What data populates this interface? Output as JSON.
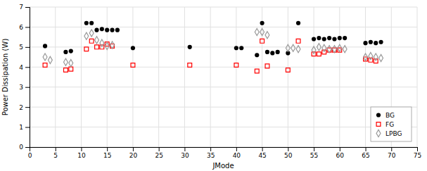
{
  "chart_data": {
    "type": "scatter",
    "xlabel": "JMode",
    "ylabel": "Power Dissipation (W)",
    "xlim": [
      0,
      75
    ],
    "ylim": [
      0,
      7
    ],
    "xticks": [
      0,
      5,
      10,
      15,
      20,
      25,
      30,
      35,
      40,
      45,
      50,
      55,
      60,
      65,
      70,
      75
    ],
    "yticks": [
      0,
      1,
      2,
      3,
      4,
      5,
      6,
      7
    ],
    "grid": true,
    "legend": "lower right",
    "series": [
      {
        "name": "BG",
        "color": "#000000",
        "marker": "circle",
        "x": [
          3,
          7,
          8,
          11,
          12,
          13,
          14,
          15,
          16,
          17,
          20,
          31,
          40,
          41,
          44,
          45,
          46,
          47,
          48,
          50,
          52,
          55,
          56,
          57,
          58,
          59,
          60,
          61,
          65,
          66,
          67,
          68
        ],
        "values": [
          5.05,
          4.75,
          4.8,
          6.2,
          6.2,
          5.85,
          5.9,
          5.85,
          5.85,
          5.85,
          4.95,
          5.0,
          4.95,
          4.95,
          4.6,
          6.2,
          4.75,
          4.7,
          4.75,
          4.7,
          6.2,
          5.4,
          5.45,
          5.4,
          5.45,
          5.4,
          5.45,
          5.45,
          5.2,
          5.25,
          5.2,
          5.25
        ]
      },
      {
        "name": "FG",
        "color": "#ff0000",
        "marker": "square-open",
        "x": [
          3,
          7,
          8,
          11,
          12,
          13,
          14,
          15,
          16,
          20,
          31,
          40,
          44,
          45,
          46,
          50,
          52,
          55,
          56,
          57,
          58,
          59,
          60,
          65,
          66,
          67
        ],
        "values": [
          4.1,
          3.85,
          3.9,
          4.9,
          5.3,
          5.0,
          5.0,
          5.15,
          5.05,
          4.1,
          4.1,
          4.1,
          3.8,
          5.3,
          4.05,
          3.85,
          5.3,
          4.65,
          4.65,
          4.75,
          4.85,
          4.85,
          4.85,
          4.4,
          4.35,
          4.3
        ]
      },
      {
        "name": "LPBG",
        "color": "#999999",
        "marker": "diamond-open",
        "x": [
          3,
          4,
          7,
          8,
          11,
          12,
          13,
          14,
          15,
          16,
          44,
          45,
          46,
          50,
          51,
          52,
          55,
          56,
          57,
          58,
          59,
          60,
          61,
          65,
          66,
          67,
          68
        ],
        "values": [
          4.5,
          4.35,
          4.25,
          4.2,
          5.55,
          5.7,
          5.35,
          5.2,
          5.05,
          5.1,
          5.75,
          5.75,
          5.6,
          4.95,
          4.95,
          4.9,
          4.85,
          5.0,
          4.95,
          4.9,
          4.9,
          4.95,
          4.9,
          4.5,
          4.55,
          4.5,
          4.45
        ]
      }
    ]
  }
}
